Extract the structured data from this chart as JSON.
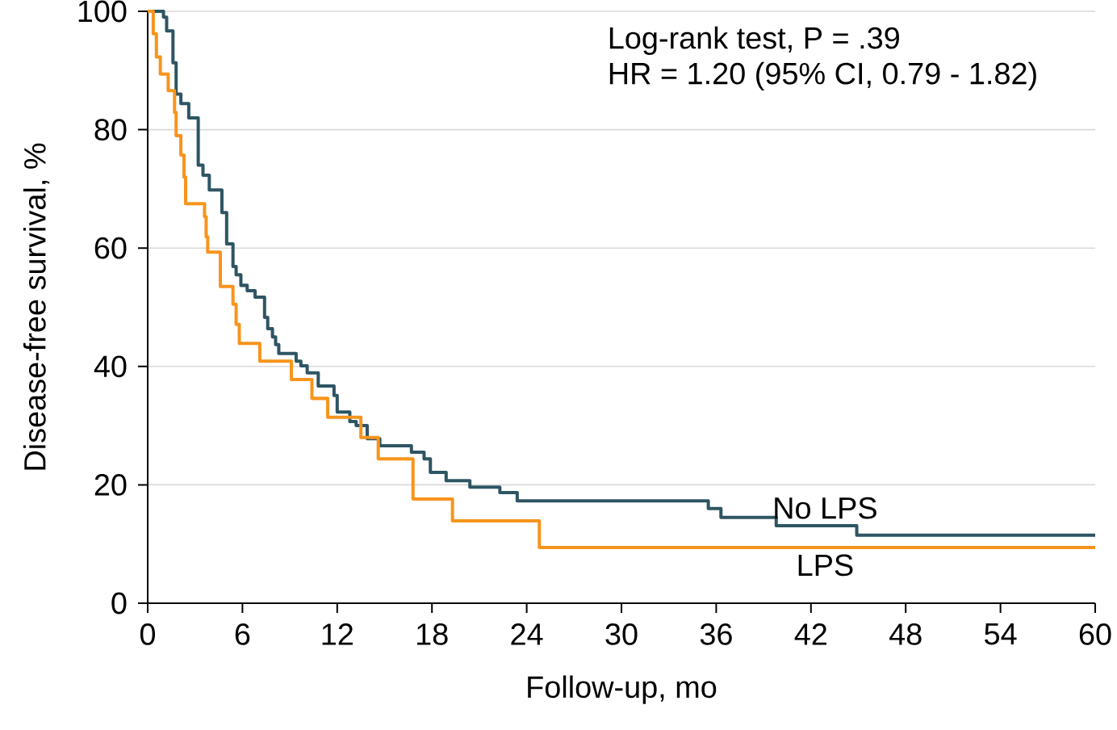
{
  "chart_data": {
    "type": "step",
    "xlabel": "Follow-up, mo",
    "ylabel": "Disease-free survival, %",
    "xlim": [
      0,
      60
    ],
    "ylim": [
      0,
      100
    ],
    "xticks": [
      0,
      6,
      12,
      18,
      24,
      30,
      36,
      42,
      48,
      54,
      60
    ],
    "yticks": [
      0,
      20,
      40,
      60,
      80,
      100
    ],
    "grid": "y",
    "annotations": [
      "Log-rank test, P = .39",
      "HR = 1.20 (95% CI, 0.79 - 1.82)"
    ],
    "series": [
      {
        "name": "No LPS",
        "color": "#2e5563",
        "x": [
          0,
          1.0,
          1.2,
          1.6,
          1.8,
          2.1,
          2.6,
          3.2,
          3.5,
          3.9,
          4.7,
          5.0,
          5.4,
          5.6,
          5.9,
          6.3,
          6.8,
          7.4,
          7.6,
          7.9,
          8.1,
          8.3,
          9.4,
          9.7,
          10.1,
          10.8,
          11.8,
          12.0,
          12.8,
          13.2,
          13.9,
          14.7,
          16.7,
          17.5,
          17.9,
          18.9,
          20.4,
          22.3,
          23.4,
          35.5,
          36.3,
          39.8,
          44.9,
          60
        ],
        "values": [
          100,
          99,
          96.7,
          91.3,
          86,
          84.4,
          82,
          74,
          72.3,
          69.8,
          66,
          60.7,
          56.9,
          55.5,
          53.7,
          52.8,
          51.7,
          48.3,
          46.4,
          45,
          43.7,
          42.2,
          40.9,
          40.1,
          38.9,
          36.7,
          35.1,
          32.3,
          30.7,
          30,
          27.8,
          26.6,
          25.5,
          24.4,
          22.1,
          20.7,
          19.6,
          18.7,
          17.3,
          16,
          14.5,
          13.1,
          11.5,
          11.5
        ]
      },
      {
        "name": "LPS",
        "color": "#f7941d",
        "x": [
          0,
          0.35,
          0.55,
          0.8,
          1.3,
          1.7,
          1.8,
          2.1,
          2.3,
          2.4,
          3.6,
          3.7,
          3.8,
          4.6,
          5.4,
          5.6,
          5.8,
          7.1,
          9.1,
          10.4,
          11.4,
          13.5,
          14.6,
          16.8,
          19.3,
          24.8,
          60
        ],
        "values": [
          100,
          96.2,
          92.3,
          89.4,
          86.6,
          82.9,
          79,
          75.7,
          72,
          67.5,
          65.3,
          61.9,
          59.3,
          53.5,
          50.5,
          47.1,
          43.9,
          40.9,
          37.8,
          34.6,
          31.4,
          28,
          24.4,
          17.6,
          13.9,
          9.4,
          9.4
        ]
      }
    ]
  }
}
